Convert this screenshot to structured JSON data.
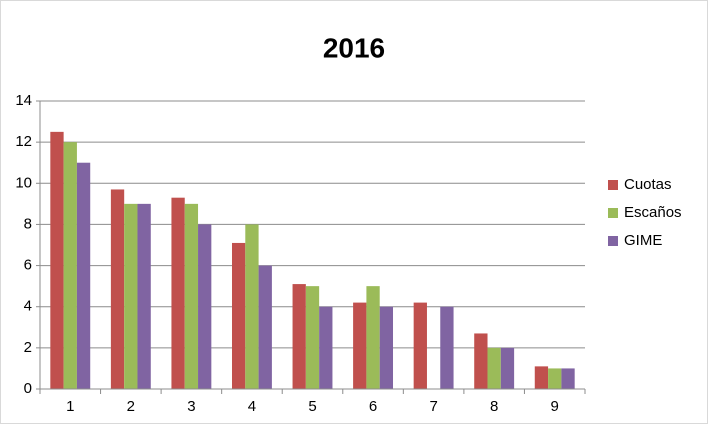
{
  "chart_data": {
    "type": "bar",
    "title": "2016",
    "categories": [
      "1",
      "2",
      "3",
      "4",
      "5",
      "6",
      "7",
      "8",
      "9"
    ],
    "series": [
      {
        "name": "Cuotas",
        "color": "#c0504d",
        "values": [
          12.5,
          9.7,
          9.3,
          7.1,
          5.1,
          4.2,
          4.2,
          2.7,
          1.1
        ]
      },
      {
        "name": "Escaños",
        "color": "#9bbb59",
        "values": [
          12,
          9,
          9,
          8,
          5,
          5,
          0,
          2,
          1
        ]
      },
      {
        "name": "GIME",
        "color": "#8064a2",
        "values": [
          11,
          9,
          8,
          6,
          4,
          4,
          4,
          2,
          1
        ]
      }
    ],
    "ylim": [
      0,
      14
    ],
    "yticks": [
      0,
      2,
      4,
      6,
      8,
      10,
      12,
      14
    ],
    "grid": true,
    "legend": "right"
  }
}
